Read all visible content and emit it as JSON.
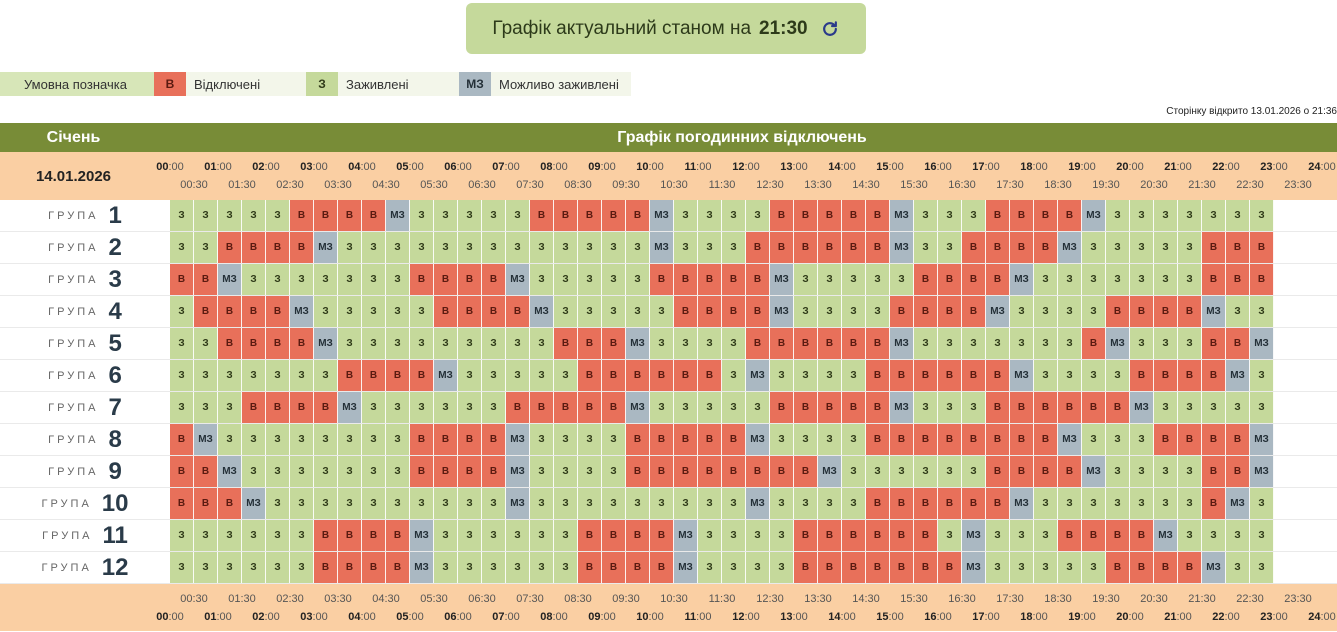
{
  "banner": {
    "text": "Графік актуальний станом на",
    "time": "21:30"
  },
  "legend": {
    "title": "Умовна позначка",
    "items": [
      {
        "code": "В",
        "label": "Відключені",
        "class": "c-B"
      },
      {
        "code": "З",
        "label": "Заживлені",
        "class": "c-Z"
      },
      {
        "code": "МЗ",
        "label": "Можливо заживлені",
        "class": "c-M"
      }
    ]
  },
  "opened_text": "Сторінку відкрито 13.01.2026 о 21:36",
  "header": {
    "month": "Січень",
    "schedule_title": "Графік погодинних відключень"
  },
  "date": "14.01.2026",
  "group_word": "ГРУПА",
  "symbols": {
    "B": "В",
    "Z": "З",
    "M": "МЗ"
  },
  "colors": {
    "off": "#e8705a",
    "on": "#c5d99b",
    "maybe": "#aab8c2",
    "header": "#788c37",
    "timebar": "#facfa3"
  },
  "groups": [
    {
      "num": "1",
      "slots": "ZZZZZBBBBMZZZZZBBBBBMZZZZBBBBBMZZZBBBBMZZZZZZZ"
    },
    {
      "num": "2",
      "slots": "ZZBBBBMZZZZZZZZZZZZZMZZZBBBBBBMZZBBBBMZZZZZBBB"
    },
    {
      "num": "3",
      "slots": "BBMZZZZZZZBBBBMZZZZZBBBBBMZZZZZBBBBMZZZZZZZBBB"
    },
    {
      "num": "4",
      "slots": "ZBBBBMZZZZZBBBBMZZZZZBBBBMZZZZBBBBMZZZZBBBBMZZ"
    },
    {
      "num": "5",
      "slots": "ZZBBBBMZZZZZZZZZBBBMZZZZBBBBBBMZZZZZZZBMZZZBBM"
    },
    {
      "num": "6",
      "slots": "ZZZZZZZBBBBMZZZZZBBBBBBZMZZZZBBBBBBMZZZZBBBBMZ"
    },
    {
      "num": "7",
      "slots": "ZZZBBBBMZZZZZZBBBBBMZZZZZBBBBBMZZZBBBBBBMZZZZZ"
    },
    {
      "num": "8",
      "slots": "BMZZZZZZZZBBBBMZZZZBBBBBMZZZZBBBBBBBBMZZZBBBBM"
    },
    {
      "num": "9",
      "slots": "BBMZZZZZZZBBBBMZZZZBBBBBBBBMZZZZZZBBBBMZZZZBBM"
    },
    {
      "num": "10",
      "slots": "BBBMZZZZZZZZZZMZZZZZZZZZMZZZZBBBBBBMZZZZZZZBMZ"
    },
    {
      "num": "11",
      "slots": "ZZZZZZBBBBMZZZZZZBBBBMZZZZBBBBBBZMZZZBBBBMZZZZ"
    },
    {
      "num": "12",
      "slots": "ZZZZZZBBBBMZZZZZZBBBBMZZZZBBBBBBBMZZZZZBBBBMZZ"
    }
  ]
}
